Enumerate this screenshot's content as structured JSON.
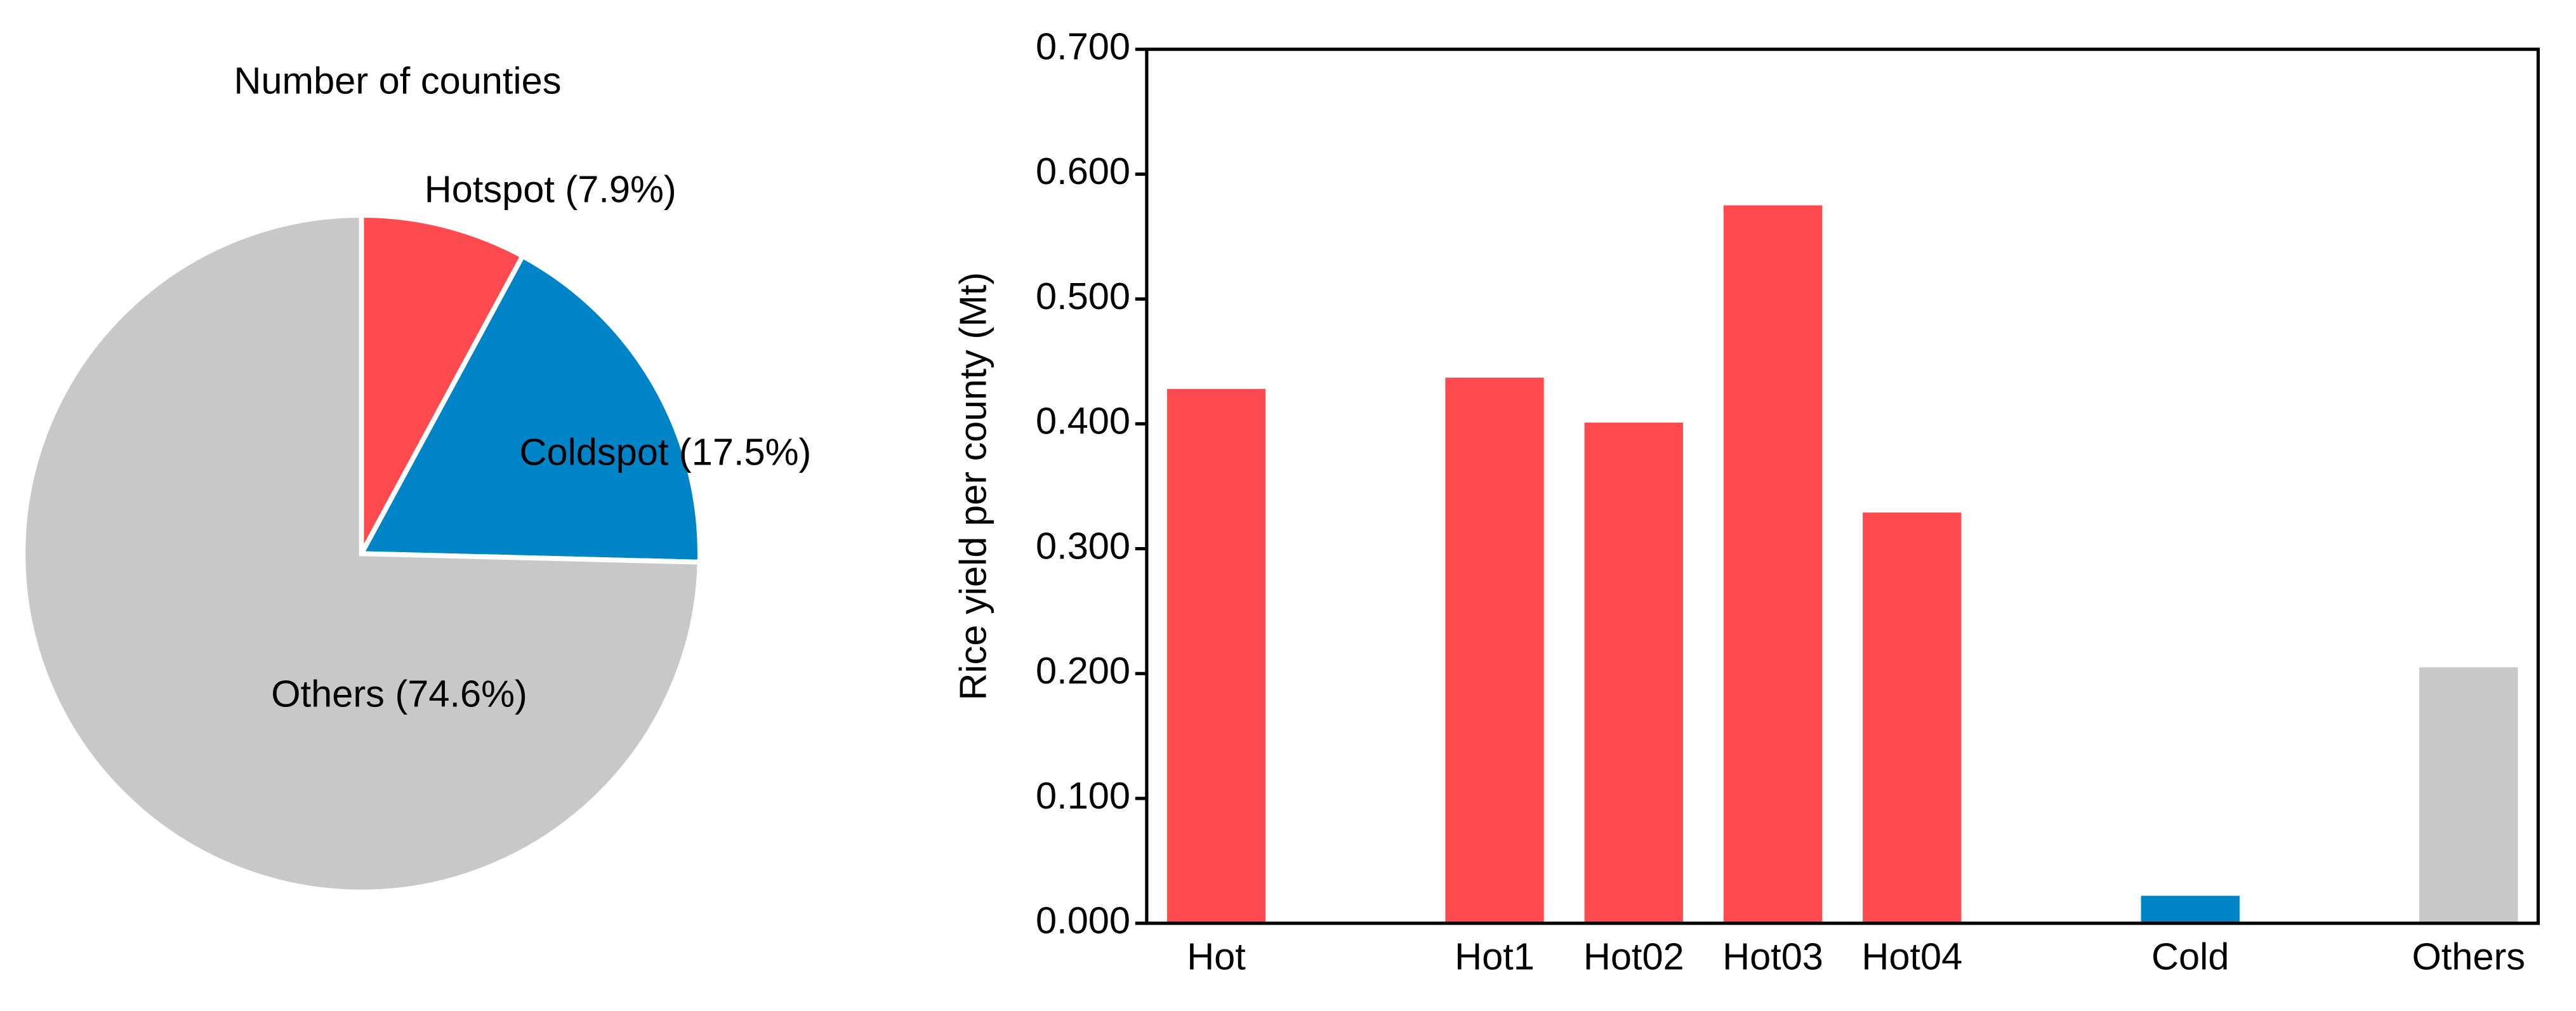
{
  "chart_data": [
    {
      "type": "pie",
      "title": "Number of counties",
      "values": [
        7.9,
        17.5,
        74.6
      ],
      "value_labels": [
        "Hotspot (7.9%)",
        "Coldspot (17.5%)",
        "Others (74.6%)"
      ],
      "colors": [
        "#ff4a4f",
        "#0084c8",
        "#c8c8c8"
      ]
    },
    {
      "type": "bar",
      "y_label": "Rice yield per county (Mt)",
      "categories": [
        "Hot",
        null,
        "Hot1",
        "Hot02",
        "Hot03",
        "Hot04",
        null,
        "Cold",
        null,
        "Others"
      ],
      "values": [
        0.428,
        null,
        0.437,
        0.401,
        0.575,
        0.329,
        null,
        0.022,
        null,
        0.205
      ],
      "colors": [
        "#ff4a4f",
        null,
        "#ff4a4f",
        "#ff4a4f",
        "#ff4a4f",
        "#ff4a4f",
        null,
        "#0084c8",
        null,
        "#c8c8c8"
      ],
      "ylim": [
        0,
        0.7
      ],
      "yticks": [
        {
          "value": 0,
          "label": "0.000"
        },
        {
          "value": 0.1,
          "label": "0.100"
        },
        {
          "value": 0.2,
          "label": "0.200"
        },
        {
          "value": 0.3,
          "label": "0.300"
        },
        {
          "value": 0.4,
          "label": "0.400"
        },
        {
          "value": 0.5,
          "label": "0.500"
        },
        {
          "value": 0.6,
          "label": "0.600"
        },
        {
          "value": 0.7,
          "label": "0.700"
        }
      ],
      "grid": false
    }
  ]
}
